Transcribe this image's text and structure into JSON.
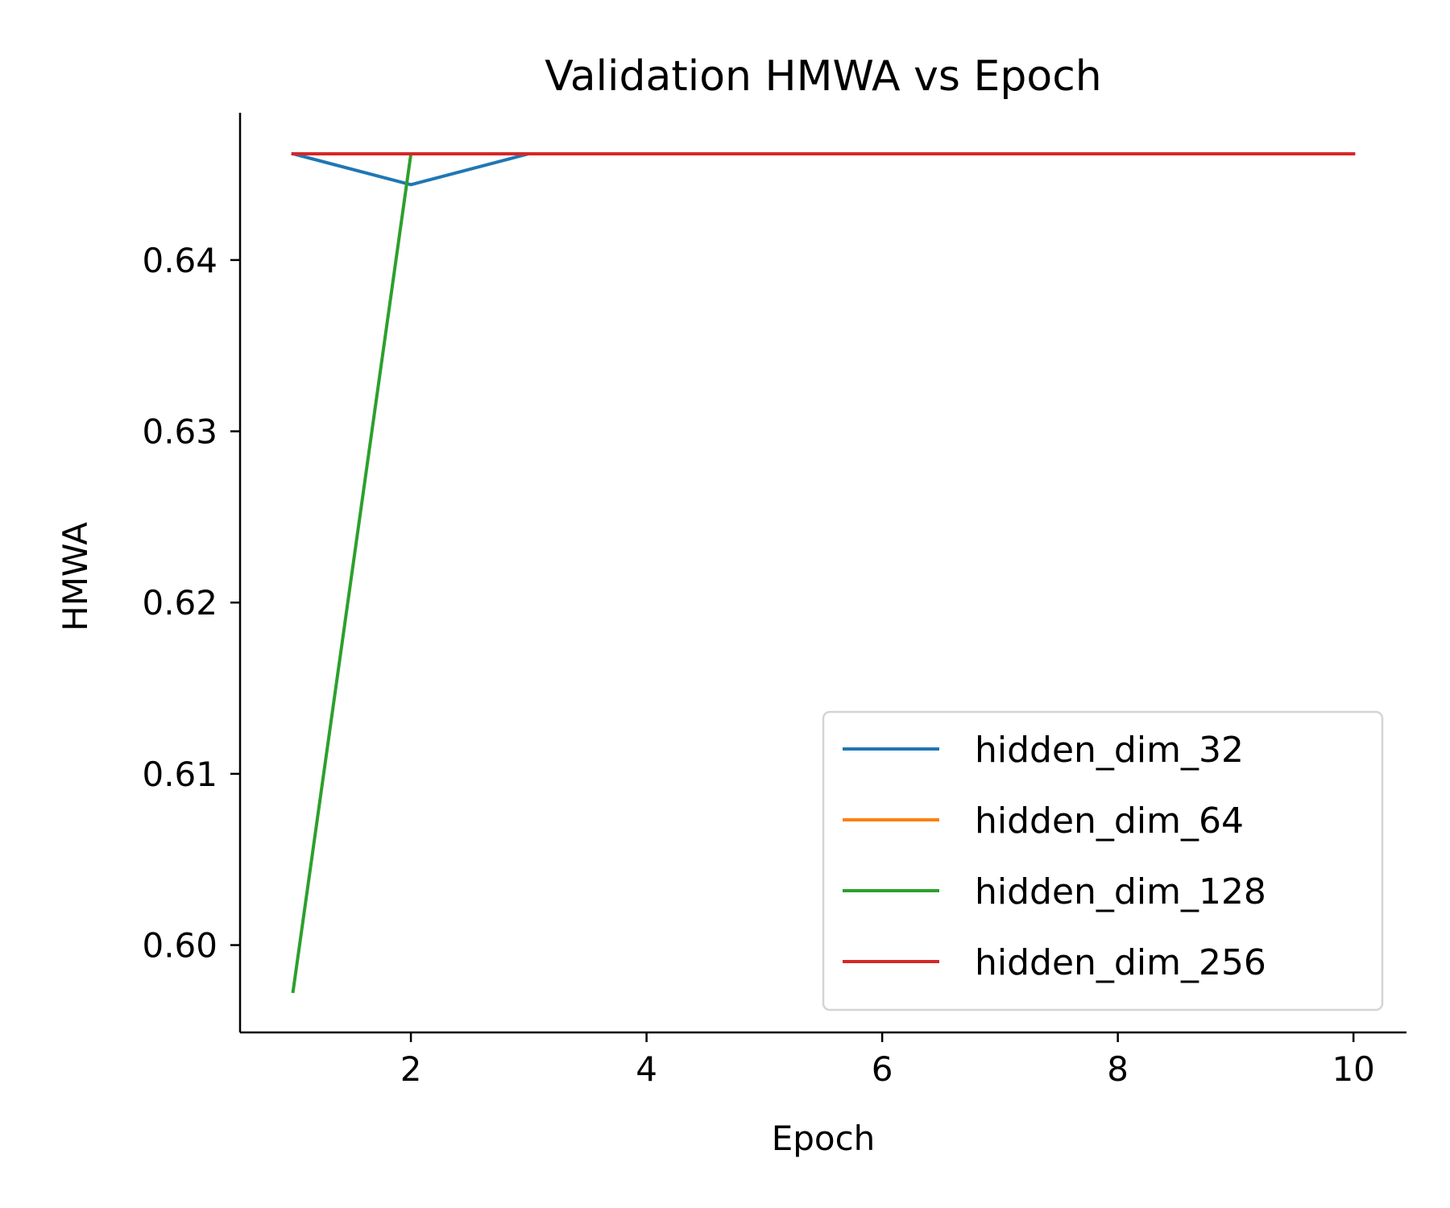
{
  "chart_data": {
    "type": "line",
    "title": "Validation HMWA vs Epoch",
    "xlabel": "Epoch",
    "ylabel": "HMWA",
    "xlim": [
      0.55,
      10.45
    ],
    "ylim": [
      0.5949,
      0.6486
    ],
    "xticks": [
      2,
      4,
      6,
      8,
      10
    ],
    "yticks": [
      0.6,
      0.61,
      0.62,
      0.63,
      0.64
    ],
    "ytick_labels": [
      "0.60",
      "0.61",
      "0.62",
      "0.63",
      "0.64"
    ],
    "grid": false,
    "legend_position": "lower-right",
    "x": [
      1,
      2,
      3,
      4,
      5,
      6,
      7,
      8,
      9,
      10
    ],
    "series": [
      {
        "name": "hidden_dim_32",
        "color": "#1f77b4",
        "values": [
          0.6462,
          0.6444,
          0.6462,
          0.6462,
          0.6462,
          0.6462,
          0.6462,
          0.6462,
          0.6462,
          0.6462
        ]
      },
      {
        "name": "hidden_dim_64",
        "color": "#ff7f0e",
        "values": [
          0.6462,
          0.6462,
          0.6462,
          0.6462,
          0.6462,
          0.6462,
          0.6462,
          0.6462,
          0.6462,
          0.6462
        ]
      },
      {
        "name": "hidden_dim_128",
        "color": "#2ca02c",
        "values": [
          0.5973,
          0.6462,
          0.6462,
          0.6462,
          0.6462,
          0.6462,
          0.6462,
          0.6462,
          0.6462,
          0.6462
        ]
      },
      {
        "name": "hidden_dim_256",
        "color": "#d62728",
        "values": [
          0.6462,
          0.6462,
          0.6462,
          0.6462,
          0.6462,
          0.6462,
          0.6462,
          0.6462,
          0.6462,
          0.6462
        ]
      }
    ]
  }
}
